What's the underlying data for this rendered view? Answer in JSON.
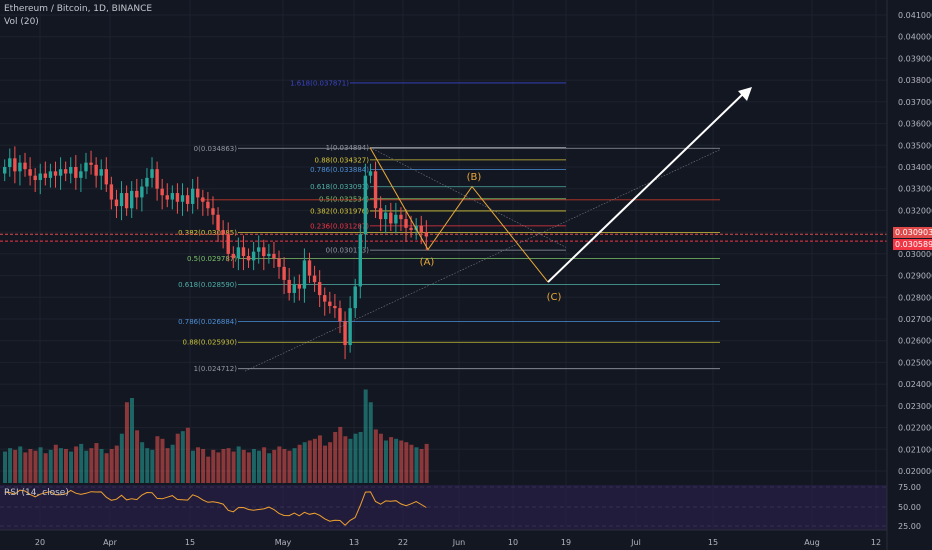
{
  "header": {
    "symbol": "Ethereum / Bitcoin, 1D, BINANCE",
    "volume_indicator": "Vol (20)",
    "rsi_indicator": "RSI (14, close)"
  },
  "price_badges": [
    {
      "label": "0.030903",
      "color": "#e04a4a"
    },
    {
      "label": "0.030589",
      "color": "#f23645"
    }
  ],
  "colors": {
    "up": "#26a69a",
    "down": "#ef5350",
    "background": "#131722",
    "rsi_panel": "#2a1f4a"
  },
  "chart_data": {
    "type": "candlestick",
    "y_axis": {
      "min": 0.0195,
      "max": 0.0412,
      "ticks": [
        "0.041000",
        "0.040000",
        "0.039000",
        "0.038000",
        "0.037000",
        "0.036000",
        "0.035000",
        "0.034000",
        "0.033000",
        "0.032000",
        "0.031000",
        "0.030000",
        "0.029000",
        "0.028000",
        "0.027000",
        "0.026000",
        "0.025000",
        "0.024000",
        "0.023000",
        "0.022000",
        "0.021000",
        "0.020000"
      ]
    },
    "x_axis": {
      "ticks": [
        "20",
        "Apr",
        "15",
        "May",
        "13",
        "22",
        "Jun",
        "10",
        "19",
        "Jul",
        "15",
        "Aug",
        "12"
      ]
    },
    "rsi_axis": {
      "ticks": [
        "75.00",
        "50.00",
        "25.00"
      ]
    },
    "candle_closes": [
      0.034,
      0.0344,
      0.0338,
      0.0342,
      0.0339,
      0.0336,
      0.0334,
      0.0337,
      0.0335,
      0.0338,
      0.0336,
      0.0339,
      0.0337,
      0.034,
      0.0335,
      0.0338,
      0.0342,
      0.0341,
      0.0336,
      0.0339,
      0.0332,
      0.0325,
      0.0322,
      0.0328,
      0.0321,
      0.0329,
      0.0326,
      0.0331,
      0.0335,
      0.0339,
      0.033,
      0.0327,
      0.0325,
      0.0328,
      0.0324,
      0.0327,
      0.0323,
      0.033,
      0.0326,
      0.0324,
      0.0321,
      0.0318,
      0.0311,
      0.0309,
      0.03,
      0.0298,
      0.0303,
      0.0299,
      0.0297,
      0.0301,
      0.0303,
      0.0299,
      0.03,
      0.0298,
      0.0294,
      0.0288,
      0.0282,
      0.0286,
      0.0284,
      0.0297,
      0.029,
      0.0287,
      0.0281,
      0.0278,
      0.0276,
      0.0275,
      0.0269,
      0.0258,
      0.0275,
      0.0285,
      0.0309,
      0.0336,
      0.0338,
      0.0321,
      0.0316,
      0.0319,
      0.0314,
      0.0318,
      0.0316,
      0.0312,
      0.0311,
      0.0313,
      0.031,
      0.0308
    ],
    "volumes": [
      0.37,
      0.41,
      0.39,
      0.43,
      0.36,
      0.4,
      0.38,
      0.42,
      0.35,
      0.39,
      0.45,
      0.41,
      0.4,
      0.37,
      0.43,
      0.46,
      0.38,
      0.41,
      0.47,
      0.4,
      0.35,
      0.4,
      0.44,
      0.58,
      0.95,
      1.0,
      0.62,
      0.48,
      0.41,
      0.39,
      0.55,
      0.52,
      0.41,
      0.45,
      0.58,
      0.61,
      0.65,
      0.38,
      0.42,
      0.4,
      0.31,
      0.39,
      0.36,
      0.4,
      0.41,
      0.37,
      0.43,
      0.39,
      0.36,
      0.4,
      0.38,
      0.42,
      0.35,
      0.39,
      0.43,
      0.4,
      0.38,
      0.41,
      0.45,
      0.48,
      0.5,
      0.52,
      0.56,
      0.44,
      0.48,
      0.6,
      0.66,
      0.55,
      0.52,
      0.58,
      0.6,
      1.1,
      0.95,
      0.63,
      0.58,
      0.5,
      0.54,
      0.52,
      0.5,
      0.48,
      0.45,
      0.42,
      0.4,
      0.46
    ],
    "fib_left": [
      {
        "label": "0(0.034863)",
        "value": 0.034863,
        "color": "#9598a1"
      },
      {
        "label": "0.382(0.030985)",
        "value": 0.030985,
        "color": "#d4c53a"
      },
      {
        "label": "0.5(0.029787)",
        "value": 0.029787,
        "color": "#7cc36a"
      },
      {
        "label": "0.618(0.028590)",
        "value": 0.02859,
        "color": "#4fb0a8"
      },
      {
        "label": "0.786(0.026884)",
        "value": 0.026884,
        "color": "#4d8fd6"
      },
      {
        "label": "0.88(0.025930)",
        "value": 0.02593,
        "color": "#c9c23a"
      },
      {
        "label": "1(0.024712)",
        "value": 0.024712,
        "color": "#9598a1"
      }
    ],
    "fib_right": [
      {
        "label": "1(0.034894)",
        "value": 0.034894,
        "color": "#9598a1"
      },
      {
        "label": "0.88(0.034327)",
        "value": 0.034327,
        "color": "#d4c53a"
      },
      {
        "label": "0.786(0.033884)",
        "value": 0.033884,
        "color": "#4d8fd6"
      },
      {
        "label": "0.618(0.033091)",
        "value": 0.033091,
        "color": "#4fb0a8"
      },
      {
        "label": "0.5(0.032534)",
        "value": 0.032534,
        "color": "#7cc36a"
      },
      {
        "label": "0.382(0.031976)",
        "value": 0.031976,
        "color": "#d4c53a"
      },
      {
        "label": "0.236(0.031287)",
        "value": 0.031287,
        "color": "#f23645"
      },
      {
        "label": "0(0.030173)",
        "value": 0.030173,
        "color": "#9598a1"
      }
    ],
    "fib_extension": {
      "label": "1.618(0.037871)",
      "value": 0.037871,
      "color": "#3a45c8"
    },
    "wave_labels": [
      "(A)",
      "(B)",
      "(C)"
    ]
  }
}
